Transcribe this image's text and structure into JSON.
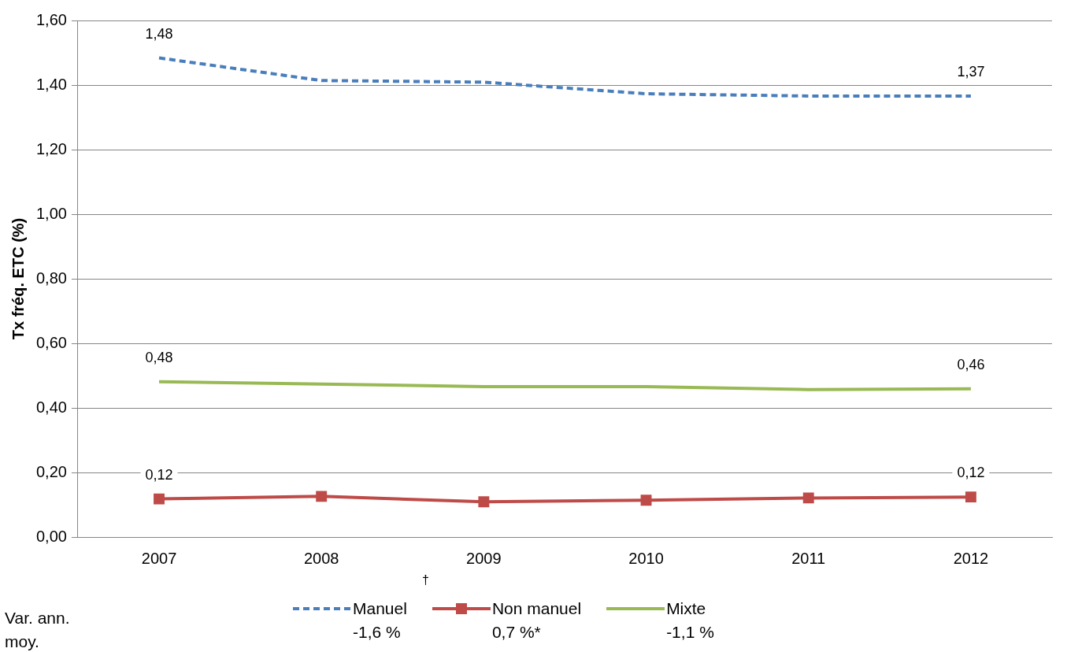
{
  "chart_data": {
    "type": "line",
    "ylabel": "Tx fréq. ETC (%)",
    "categories": [
      "2007",
      "2008",
      "2009",
      "2010",
      "2011",
      "2012"
    ],
    "series": [
      {
        "name": "Manuel\n-1,6 %",
        "color": "#4a7ebb",
        "line_style": "dashed",
        "marker": "none",
        "values": [
          1.484,
          1.414,
          1.409,
          1.373,
          1.366,
          1.366
        ],
        "value_labels": [
          "1,48",
          null,
          null,
          null,
          null,
          "1,37"
        ]
      },
      {
        "name": "Non manuel\n0,7 %*",
        "color": "#be4b48",
        "line_style": "solid",
        "marker": "square",
        "values": [
          0.118,
          0.126,
          0.109,
          0.114,
          0.121,
          0.124
        ],
        "value_labels": [
          "0,12",
          null,
          null,
          null,
          null,
          "0,12"
        ]
      },
      {
        "name": "Mixte\n-1,1 %",
        "color": "#98b954",
        "line_style": "solid",
        "marker": "none",
        "values": [
          0.481,
          0.474,
          0.466,
          0.466,
          0.457,
          0.459
        ],
        "value_labels": [
          "0,48",
          null,
          null,
          null,
          null,
          "0,46"
        ]
      }
    ],
    "ylim": [
      0,
      1.6
    ],
    "yticks": [
      {
        "value": 0,
        "label": "0,00"
      },
      {
        "value": 0.2,
        "label": "0,20"
      },
      {
        "value": 0.4,
        "label": "0,40"
      },
      {
        "value": 0.6,
        "label": "0,60"
      },
      {
        "value": 0.8,
        "label": "0,80"
      },
      {
        "value": 1,
        "label": "1,00"
      },
      {
        "value": 1.2,
        "label": "1,20"
      },
      {
        "value": 1.4,
        "label": "1,40"
      },
      {
        "value": 1.6,
        "label": "1,60"
      }
    ],
    "grid": "y",
    "legend": "bottom",
    "annotations": [
      "Var. ann. moy.",
      "†"
    ]
  }
}
